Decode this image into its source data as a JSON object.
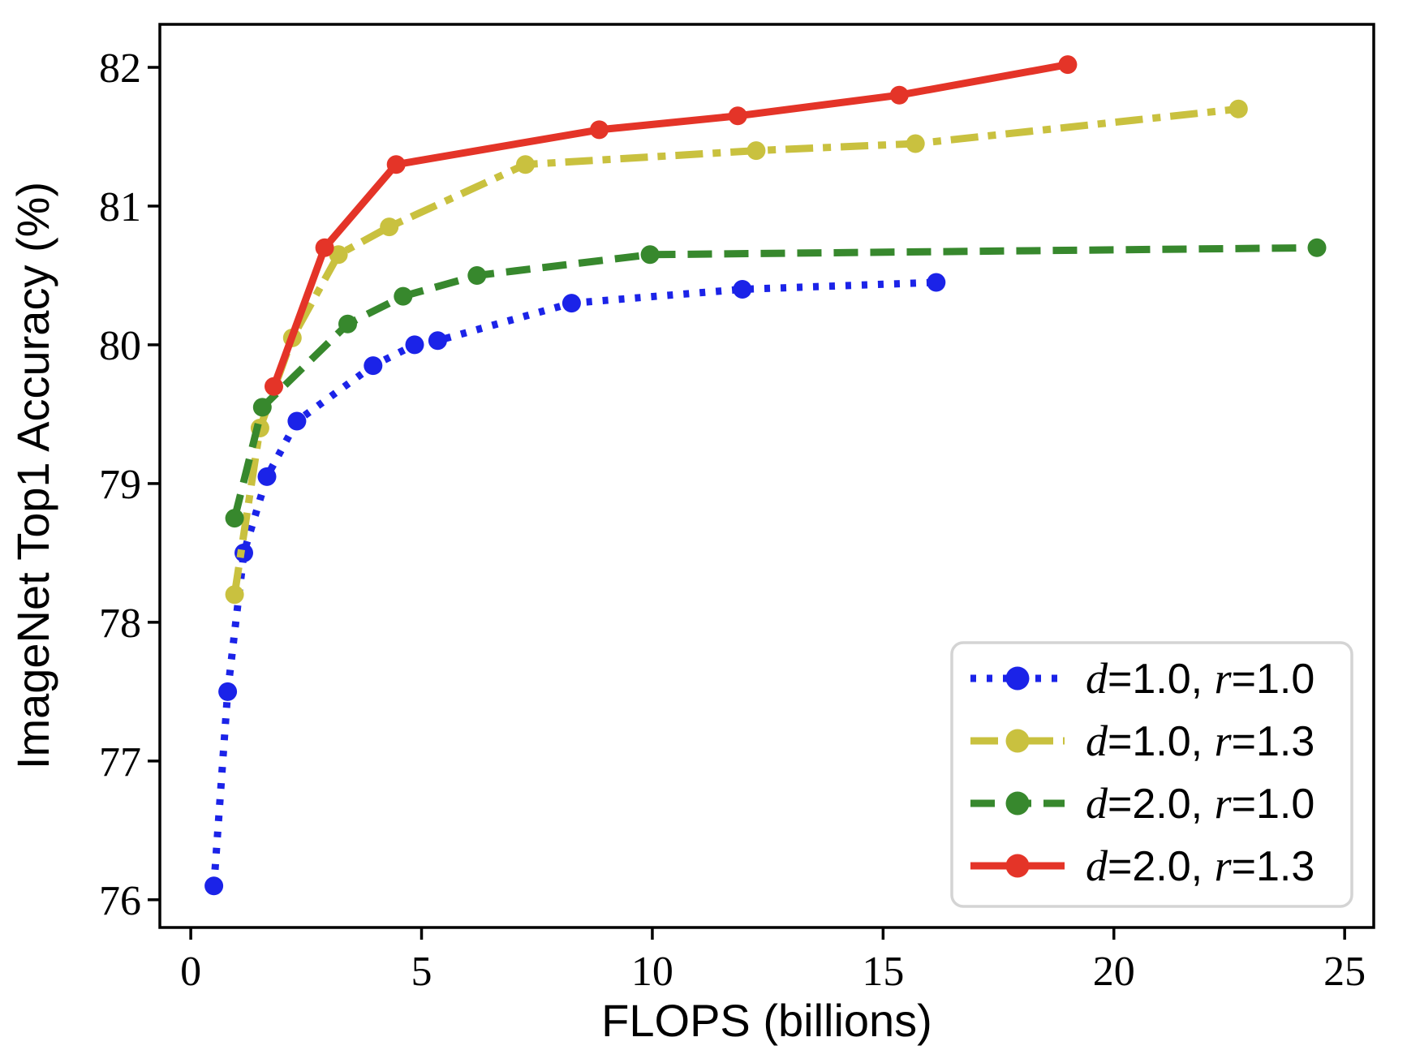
{
  "figure": {
    "background": "#ffffff",
    "spine_color": "#000000",
    "legend_border_color": "#d4d4d4"
  },
  "chart_data": {
    "type": "line",
    "title": "",
    "xlabel": "FLOPS (billions)",
    "ylabel": "ImageNet Top1 Accuracy (%)",
    "xlim": [
      -0.67,
      25.63
    ],
    "ylim": [
      75.8,
      82.31
    ],
    "xticks": [
      0,
      5,
      10,
      15,
      20,
      25
    ],
    "yticks": [
      76,
      77,
      78,
      79,
      80,
      81,
      82
    ],
    "grid": false,
    "legend": {
      "position": "lower right",
      "entries": [
        "d=1.0, r=1.0",
        "d=1.0, r=1.3",
        "d=2.0, r=1.0",
        "d=2.0, r=1.3"
      ]
    },
    "series": [
      {
        "name": "d=1.0, r=1.0",
        "color": "#1b23e8",
        "linestyle": "dotted",
        "marker": "circle",
        "label_parts": [
          {
            "t": "d",
            "math": true
          },
          {
            "t": "=1.0, ",
            "math": false
          },
          {
            "t": "r",
            "math": true
          },
          {
            "t": "=1.0",
            "math": false
          }
        ],
        "points": [
          [
            0.5,
            76.1
          ],
          [
            0.8,
            77.5
          ],
          [
            1.15,
            78.5
          ],
          [
            1.65,
            79.05
          ],
          [
            2.3,
            79.45
          ],
          [
            3.95,
            79.85
          ],
          [
            4.85,
            80.0
          ],
          [
            5.35,
            80.03
          ],
          [
            8.25,
            80.3
          ],
          [
            11.95,
            80.4
          ],
          [
            16.15,
            80.45
          ]
        ]
      },
      {
        "name": "d=1.0, r=1.3",
        "color": "#c9c13f",
        "linestyle": "dashdot",
        "marker": "circle",
        "label_parts": [
          {
            "t": "d",
            "math": true
          },
          {
            "t": "=1.0, ",
            "math": false
          },
          {
            "t": "r",
            "math": true
          },
          {
            "t": "=1.3",
            "math": false
          }
        ],
        "points": [
          [
            0.95,
            78.2
          ],
          [
            1.5,
            79.4
          ],
          [
            2.2,
            80.05
          ],
          [
            3.2,
            80.65
          ],
          [
            4.3,
            80.85
          ],
          [
            7.25,
            81.3
          ],
          [
            12.25,
            81.4
          ],
          [
            15.7,
            81.45
          ],
          [
            22.7,
            81.7
          ]
        ]
      },
      {
        "name": "d=2.0, r=1.0",
        "color": "#37882d",
        "linestyle": "dashed",
        "marker": "circle",
        "label_parts": [
          {
            "t": "d",
            "math": true
          },
          {
            "t": "=2.0, ",
            "math": false
          },
          {
            "t": "r",
            "math": true
          },
          {
            "t": "=1.0",
            "math": false
          }
        ],
        "points": [
          [
            0.95,
            78.75
          ],
          [
            1.55,
            79.55
          ],
          [
            3.4,
            80.15
          ],
          [
            4.6,
            80.35
          ],
          [
            6.2,
            80.5
          ],
          [
            9.95,
            80.65
          ],
          [
            24.4,
            80.7
          ]
        ]
      },
      {
        "name": "d=2.0, r=1.3",
        "color": "#e43428",
        "linestyle": "solid",
        "marker": "circle",
        "label_parts": [
          {
            "t": "d",
            "math": true
          },
          {
            "t": "=2.0, ",
            "math": false
          },
          {
            "t": "r",
            "math": true
          },
          {
            "t": "=1.3",
            "math": false
          }
        ],
        "points": [
          [
            1.8,
            79.7
          ],
          [
            2.9,
            80.7
          ],
          [
            4.45,
            81.3
          ],
          [
            8.85,
            81.55
          ],
          [
            11.85,
            81.65
          ],
          [
            15.35,
            81.8
          ],
          [
            19.0,
            82.02
          ]
        ]
      }
    ]
  }
}
